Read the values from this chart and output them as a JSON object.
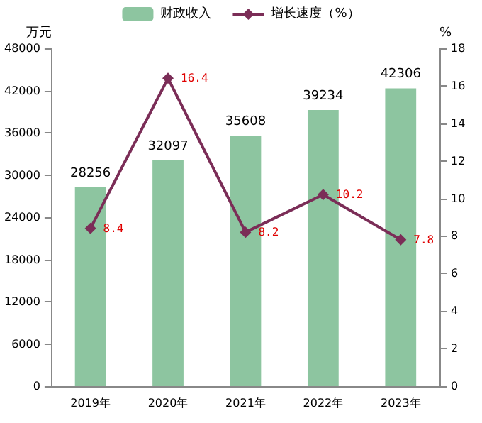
{
  "chart_data": {
    "type": "bar",
    "ylabel": "万元",
    "y2label": "%",
    "categories": [
      "2019年",
      "2020年",
      "2021年",
      "2022年",
      "2023年"
    ],
    "series": [
      {
        "name": "财政收入",
        "color": "#8dc5a0",
        "values": [
          28256,
          32097,
          35608,
          39234,
          42306
        ]
      },
      {
        "name": "增长速度（%）",
        "type": "line",
        "axis": "y2",
        "color": "#7b2d57",
        "marker": "diamond",
        "values": [
          8.4,
          16.4,
          8.2,
          10.2,
          7.8
        ]
      }
    ],
    "ylim": [
      0,
      48000
    ],
    "yticks": [
      0,
      6000,
      12000,
      18000,
      24000,
      30000,
      36000,
      42000,
      48000
    ],
    "y2lim": [
      0,
      18
    ],
    "y2ticks": [
      0,
      2,
      4,
      6,
      8,
      10,
      12,
      14,
      16,
      18
    ],
    "data_labels": true,
    "legend": "top",
    "grid": false
  }
}
